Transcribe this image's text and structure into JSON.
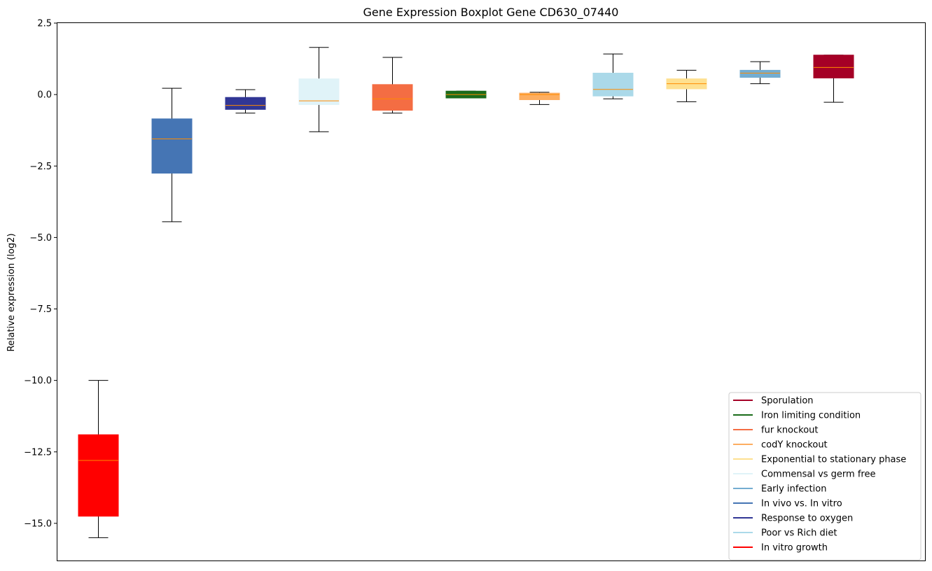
{
  "chart_data": {
    "type": "box",
    "title": "Gene Expression Boxplot Gene CD630_07440",
    "xlabel": "",
    "ylabel": "Relative expression (log2)",
    "ylim": [
      -16.3,
      2.5
    ],
    "yticks": [
      2.5,
      0.0,
      -2.5,
      -5.0,
      -7.5,
      -10.0,
      -12.5,
      -15.0
    ],
    "ytick_labels": [
      "2.5",
      "0.0",
      "−2.5",
      "−5.0",
      "−7.5",
      "−10.0",
      "−12.5",
      "−15.0"
    ],
    "legend_position": "lower-right",
    "median_color": "#ff8c00",
    "series": [
      {
        "name": "In vitro growth",
        "color": "#ff0000",
        "whisker_low": -15.5,
        "q1": -14.75,
        "median": -12.8,
        "q3": -11.9,
        "whisker_high": -10.0
      },
      {
        "name": "In vivo vs. In vitro",
        "color": "#4575b4",
        "whisker_low": -4.45,
        "q1": -2.75,
        "median": -1.55,
        "q3": -0.85,
        "whisker_high": 0.22
      },
      {
        "name": "Response to oxygen",
        "color": "#313695",
        "whisker_low": -0.65,
        "q1": -0.52,
        "median": -0.38,
        "q3": -0.1,
        "whisker_high": 0.17
      },
      {
        "name": "Commensal vs germ free",
        "color": "#e0f3f8",
        "whisker_low": -1.3,
        "q1": -0.35,
        "median": -0.22,
        "q3": 0.55,
        "whisker_high": 1.65
      },
      {
        "name": "fur knockout",
        "color": "#f46d43",
        "whisker_low": -0.65,
        "q1": -0.55,
        "median": -0.15,
        "q3": 0.35,
        "whisker_high": 1.3
      },
      {
        "name": "Iron limiting condition",
        "color": "#1a6b1a",
        "whisker_low": -0.12,
        "q1": -0.12,
        "median": 0.0,
        "q3": 0.12,
        "whisker_high": 0.12
      },
      {
        "name": "codY knockout",
        "color": "#fdae61",
        "whisker_low": -0.35,
        "q1": -0.18,
        "median": 0.0,
        "q3": 0.05,
        "whisker_high": 0.08
      },
      {
        "name": "Poor vs Rich diet",
        "color": "#abd9e9",
        "whisker_low": -0.15,
        "q1": -0.05,
        "median": 0.18,
        "q3": 0.75,
        "whisker_high": 1.42
      },
      {
        "name": "Exponential to stationary phase",
        "color": "#fee090",
        "whisker_low": -0.25,
        "q1": 0.2,
        "median": 0.38,
        "q3": 0.55,
        "whisker_high": 0.85
      },
      {
        "name": "Early infection",
        "color": "#74add1",
        "whisker_low": 0.38,
        "q1": 0.6,
        "median": 0.75,
        "q3": 0.85,
        "whisker_high": 1.15
      },
      {
        "name": "Sporulation",
        "color": "#a50026",
        "whisker_low": -0.27,
        "q1": 0.58,
        "median": 0.95,
        "q3": 1.38,
        "whisker_high": 1.38
      }
    ],
    "legend": [
      {
        "label": "Sporulation",
        "color": "#a50026"
      },
      {
        "label": "Iron limiting condition",
        "color": "#1a6b1a"
      },
      {
        "label": "fur knockout",
        "color": "#f46d43"
      },
      {
        "label": "codY knockout",
        "color": "#fdae61"
      },
      {
        "label": "Exponential to stationary phase",
        "color": "#fee090"
      },
      {
        "label": "Commensal vs germ free",
        "color": "#e0f3f8"
      },
      {
        "label": "Early infection",
        "color": "#74add1"
      },
      {
        "label": "In vivo vs. In vitro",
        "color": "#4575b4"
      },
      {
        "label": "Response to oxygen",
        "color": "#313695"
      },
      {
        "label": "Poor vs Rich diet",
        "color": "#abd9e9"
      },
      {
        "label": "In vitro growth",
        "color": "#ff0000"
      }
    ]
  }
}
